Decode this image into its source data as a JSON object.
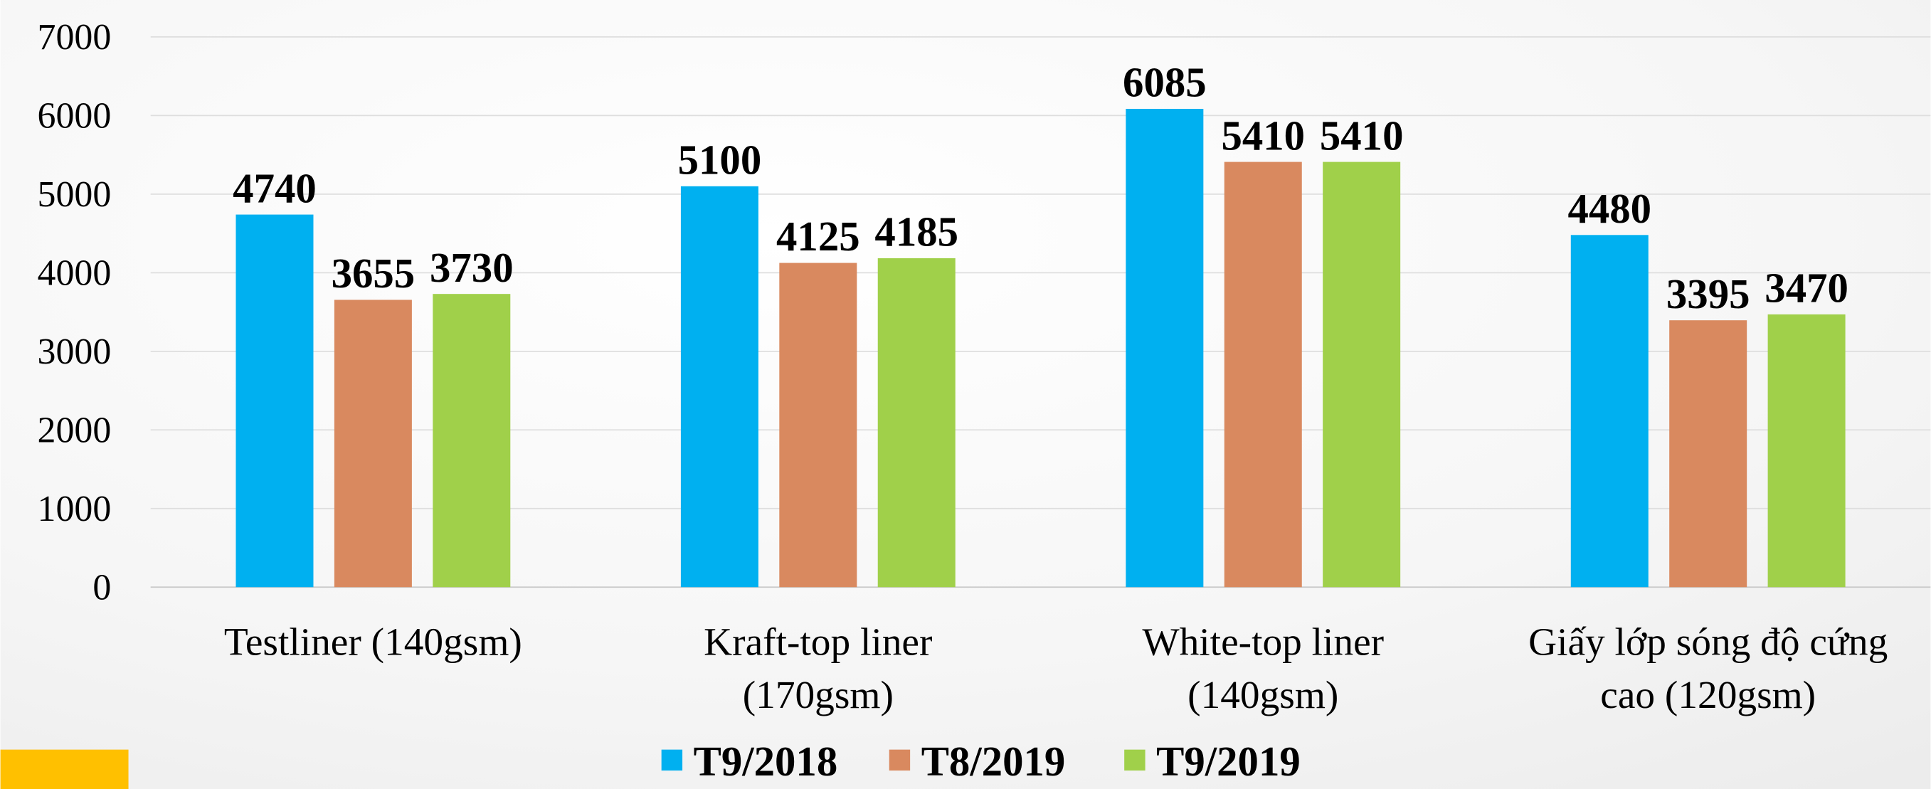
{
  "chart_data": {
    "type": "bar",
    "categories": [
      "Testliner (140gsm)",
      "Kraft-top liner (170gsm)",
      "White-top liner (140gsm)",
      "Giấy lớp sóng độ cứng cao (120gsm)"
    ],
    "series": [
      {
        "name": "T9/2018",
        "color": "#00b0f0",
        "values": [
          4740,
          5100,
          6085,
          4480
        ]
      },
      {
        "name": "T8/2019",
        "color": "#d9895f",
        "values": [
          3655,
          4125,
          5410,
          3395
        ]
      },
      {
        "name": "T9/2019",
        "color": "#a0d04a",
        "values": [
          3730,
          4185,
          5410,
          3470
        ]
      }
    ],
    "ylim": [
      0,
      7000
    ],
    "yticks": [
      0,
      1000,
      2000,
      3000,
      4000,
      5000,
      6000,
      7000
    ],
    "grid": true,
    "legend": "bottom"
  }
}
